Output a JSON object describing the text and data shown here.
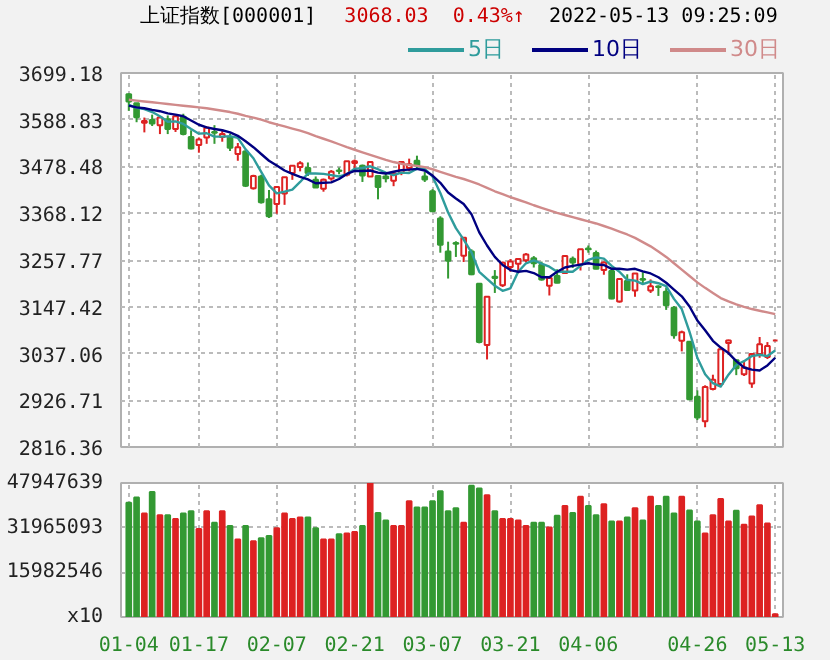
{
  "chart_data": [
    {
      "type": "candlestick",
      "title": "上证指数[000001]",
      "annotations": [
        "3068.03",
        "0.43%↑",
        "2022-05-13 09:25:09"
      ],
      "categories": [
        null,
        null,
        null,
        null,
        null,
        null,
        null,
        null,
        null,
        null,
        null,
        null,
        null,
        null,
        null,
        null,
        null,
        null,
        null,
        null,
        null,
        null,
        null,
        null,
        null,
        null,
        null,
        null,
        null,
        null,
        null,
        null,
        null,
        null,
        null,
        null,
        null,
        null,
        null,
        null,
        null,
        null,
        null,
        null,
        null,
        null,
        null,
        null,
        null,
        null,
        null,
        null,
        null,
        null,
        null,
        null,
        null,
        null,
        null,
        null,
        null,
        null,
        null,
        null,
        null,
        null,
        null,
        null,
        null,
        null,
        null,
        null,
        null,
        null,
        null,
        null,
        null,
        null,
        null,
        null,
        null,
        null,
        null,
        null
      ],
      "ohlc": [
        [
          3649,
          3651,
          3610,
          3632
        ],
        [
          3628,
          3628,
          3583,
          3595
        ],
        [
          3582,
          3594,
          3559,
          3586
        ],
        [
          3588,
          3601,
          3574,
          3580
        ],
        [
          3576,
          3594,
          3555,
          3594
        ],
        [
          3590,
          3599,
          3555,
          3567
        ],
        [
          3567,
          3599,
          3560,
          3597
        ],
        [
          3596,
          3603,
          3552,
          3555
        ],
        [
          3548,
          3564,
          3519,
          3521
        ],
        [
          3529,
          3547,
          3511,
          3542
        ],
        [
          3547,
          3573,
          3532,
          3570
        ],
        [
          3560,
          3576,
          3532,
          3558
        ],
        [
          3548,
          3566,
          3537,
          3555
        ],
        [
          3547,
          3556,
          3515,
          3523
        ],
        [
          3508,
          3534,
          3492,
          3524
        ],
        [
          3514,
          3518,
          3430,
          3433
        ],
        [
          3427,
          3459,
          3424,
          3456
        ],
        [
          3455,
          3459,
          3391,
          3394
        ],
        [
          3401,
          3423,
          3357,
          3361
        ],
        [
          3390,
          3430,
          3367,
          3430
        ],
        [
          3415,
          3453,
          3388,
          3453
        ],
        [
          3463,
          3480,
          3447,
          3480
        ],
        [
          3477,
          3491,
          3467,
          3486
        ],
        [
          3475,
          3488,
          3456,
          3463
        ],
        [
          3447,
          3455,
          3428,
          3429
        ],
        [
          3426,
          3450,
          3419,
          3447
        ],
        [
          3450,
          3470,
          3445,
          3466
        ],
        [
          3469,
          3476,
          3460,
          3468
        ],
        [
          3459,
          3491,
          3455,
          3491
        ],
        [
          3487,
          3495,
          3466,
          3491
        ],
        [
          3480,
          3483,
          3442,
          3457
        ],
        [
          3455,
          3490,
          3454,
          3489
        ],
        [
          3456,
          3458,
          3401,
          3430
        ],
        [
          3455,
          3465,
          3441,
          3451
        ],
        [
          3445,
          3464,
          3432,
          3462
        ],
        [
          3464,
          3489,
          3458,
          3489
        ],
        [
          3475,
          3497,
          3467,
          3484
        ],
        [
          3492,
          3504,
          3471,
          3481
        ],
        [
          3455,
          3466,
          3442,
          3448
        ],
        [
          3420,
          3425,
          3372,
          3373
        ],
        [
          3356,
          3361,
          3275,
          3294
        ],
        [
          3278,
          3301,
          3214,
          3256
        ],
        [
          3298,
          3302,
          3265,
          3296
        ],
        [
          3268,
          3312,
          3253,
          3310
        ],
        [
          3278,
          3283,
          3222,
          3224
        ],
        [
          3202,
          3202,
          3061,
          3064
        ],
        [
          3057,
          3171,
          3023,
          3171
        ],
        [
          3218,
          3234,
          3180,
          3215
        ],
        [
          3198,
          3254,
          3194,
          3251
        ],
        [
          3241,
          3260,
          3230,
          3254
        ],
        [
          3249,
          3260,
          3226,
          3260
        ],
        [
          3257,
          3274,
          3252,
          3271
        ],
        [
          3262,
          3267,
          3240,
          3250
        ],
        [
          3246,
          3254,
          3209,
          3212
        ],
        [
          3197,
          3215,
          3174,
          3215
        ],
        [
          3220,
          3236,
          3203,
          3204
        ],
        [
          3227,
          3267,
          3227,
          3267
        ],
        [
          3261,
          3266,
          3239,
          3252
        ],
        [
          3247,
          3283,
          3233,
          3283
        ],
        [
          3285,
          3292,
          3275,
          3283
        ],
        [
          3274,
          3280,
          3236,
          3237
        ],
        [
          3234,
          3254,
          3223,
          3252
        ],
        [
          3232,
          3240,
          3165,
          3167
        ],
        [
          3160,
          3214,
          3157,
          3213
        ],
        [
          3208,
          3224,
          3185,
          3187
        ],
        [
          3186,
          3226,
          3171,
          3226
        ],
        [
          3213,
          3229,
          3202,
          3211
        ],
        [
          3186,
          3212,
          3180,
          3196
        ],
        [
          3195,
          3198,
          3173,
          3194
        ],
        [
          3183,
          3193,
          3140,
          3151
        ],
        [
          3145,
          3149,
          3072,
          3080
        ],
        [
          3067,
          3091,
          3042,
          3087
        ],
        [
          3065,
          3066,
          2927,
          2929
        ],
        [
          2935,
          2950,
          2880,
          2886
        ],
        [
          2877,
          2962,
          2863,
          2958
        ],
        [
          2953,
          2987,
          2950,
          2975
        ],
        [
          2965,
          3048,
          2962,
          3047
        ],
        [
          3062,
          3070,
          3034,
          3068
        ],
        [
          3021,
          3023,
          2986,
          3002
        ],
        [
          2988,
          3017,
          2984,
          3004
        ],
        [
          2966,
          3036,
          2956,
          3036
        ],
        [
          3036,
          3076,
          3027,
          3059
        ],
        [
          3029,
          3064,
          3024,
          3055
        ],
        [
          3068,
          3068,
          3068,
          3068
        ]
      ],
      "series": [
        {
          "name": "5日",
          "type": "line",
          "color": "#2f9c9c",
          "values": [
            3624,
            3617,
            3614,
            3607,
            3597,
            3584,
            3585,
            3579,
            3567,
            3556,
            3557,
            3549,
            3549,
            3550,
            3546,
            3519,
            3498,
            3466,
            3434,
            3415,
            3419,
            3424,
            3442,
            3462,
            3462,
            3461,
            3458,
            3455,
            3460,
            3473,
            3475,
            3479,
            3472,
            3464,
            3458,
            3464,
            3463,
            3473,
            3473,
            3455,
            3416,
            3370,
            3333,
            3306,
            3276,
            3230,
            3213,
            3197,
            3185,
            3191,
            3230,
            3250,
            3257,
            3249,
            3242,
            3230,
            3230,
            3230,
            3244,
            3258,
            3264,
            3261,
            3244,
            3230,
            3211,
            3209,
            3201,
            3207,
            3203,
            3196,
            3166,
            3142,
            3088,
            3027,
            2988,
            2967,
            2959,
            2987,
            3010,
            3019,
            3031,
            3034,
            3031,
            3044
          ]
        },
        {
          "name": "10日",
          "type": "line",
          "color": "#000080",
          "values": [
            3622,
            3618,
            3616,
            3612,
            3609,
            3604,
            3601,
            3597,
            3587,
            3577,
            3571,
            3567,
            3564,
            3559,
            3551,
            3538,
            3524,
            3508,
            3492,
            3481,
            3469,
            3461,
            3454,
            3448,
            3439,
            3440,
            3441,
            3449,
            3461,
            3468,
            3468,
            3469,
            3464,
            3462,
            3466,
            3470,
            3471,
            3473,
            3469,
            3457,
            3440,
            3417,
            3403,
            3390,
            3366,
            3323,
            3292,
            3265,
            3246,
            3234,
            3230,
            3232,
            3227,
            3217,
            3217,
            3230,
            3240,
            3244,
            3247,
            3250,
            3247,
            3246,
            3237,
            3237,
            3235,
            3237,
            3231,
            3226,
            3217,
            3204,
            3188,
            3172,
            3148,
            3115,
            3092,
            3067,
            3051,
            3038,
            3019,
            3004,
            2999,
            2997,
            3009,
            3027
          ]
        },
        {
          "name": "30日",
          "type": "line",
          "color": "#d08a8a",
          "values": [
            3636,
            3634,
            3632,
            3630,
            3628,
            3626,
            3624,
            3622,
            3620,
            3618,
            3616,
            3613,
            3610,
            3607,
            3603,
            3598,
            3594,
            3589,
            3583,
            3578,
            3573,
            3568,
            3563,
            3557,
            3550,
            3544,
            3538,
            3531,
            3524,
            3518,
            3512,
            3506,
            3500,
            3494,
            3489,
            3485,
            3482,
            3480,
            3477,
            3472,
            3466,
            3460,
            3454,
            3449,
            3443,
            3436,
            3428,
            3420,
            3413,
            3406,
            3400,
            3394,
            3387,
            3381,
            3375,
            3369,
            3364,
            3359,
            3354,
            3349,
            3344,
            3338,
            3332,
            3325,
            3318,
            3310,
            3300,
            3290,
            3278,
            3265,
            3250,
            3235,
            3220,
            3205,
            3192,
            3180,
            3168,
            3160,
            3153,
            3147,
            3142,
            3138,
            3134,
            3130
          ]
        }
      ],
      "ylim": [
        2816.36,
        3699.18
      ],
      "yticks": [
        2816.36,
        2926.71,
        3037.06,
        3147.42,
        3257.77,
        3368.12,
        3478.48,
        3588.83,
        3699.18
      ],
      "grid": true,
      "legend": "top right"
    },
    {
      "type": "bar",
      "categories": [
        "01-04",
        null,
        null,
        null,
        null,
        null,
        null,
        null,
        null,
        "01-17",
        null,
        null,
        null,
        null,
        null,
        null,
        null,
        null,
        null,
        "02-07",
        null,
        null,
        null,
        null,
        null,
        null,
        null,
        null,
        null,
        "02-21",
        null,
        null,
        null,
        null,
        null,
        null,
        null,
        null,
        null,
        "03-07",
        null,
        null,
        null,
        null,
        null,
        null,
        null,
        null,
        null,
        "03-21",
        null,
        null,
        null,
        null,
        null,
        null,
        null,
        null,
        null,
        "04-06",
        null,
        null,
        null,
        null,
        null,
        null,
        null,
        null,
        null,
        null,
        null,
        null,
        null,
        "04-26",
        null,
        null,
        null,
        null,
        null,
        null,
        null,
        null,
        null,
        "05-13"
      ],
      "values": [
        40900000,
        42800000,
        37000000,
        44700000,
        36400000,
        36400000,
        35100000,
        37000000,
        37800000,
        31500000,
        37800000,
        33700000,
        37800000,
        32600000,
        27700000,
        32600000,
        27100000,
        28200000,
        29000000,
        31800000,
        37000000,
        35100000,
        35600000,
        35600000,
        31800000,
        27700000,
        27700000,
        29600000,
        29900000,
        30400000,
        32600000,
        47900000,
        37200000,
        34500000,
        32600000,
        32600000,
        41400000,
        39200000,
        39200000,
        41400000,
        45000000,
        37800000,
        38900000,
        33700000,
        47000000,
        46000000,
        43600000,
        37800000,
        35100000,
        35100000,
        34500000,
        32600000,
        33700000,
        33700000,
        32000000,
        36200000,
        39700000,
        37200000,
        43000000,
        39700000,
        36400000,
        40300000,
        34200000,
        34200000,
        35600000,
        38900000,
        34500000,
        43000000,
        39700000,
        43000000,
        37000000,
        43000000,
        38100000,
        34200000,
        29900000,
        36400000,
        42200000,
        34200000,
        38000000,
        33000000,
        36000000,
        40000000,
        33500000,
        1000000
      ],
      "colors": [
        "#339933",
        "#339933",
        "#dd2222",
        "#339933",
        "#dd2222",
        "#339933",
        "#dd2222",
        "#339933",
        "#339933",
        "#dd2222",
        "#dd2222",
        "#339933",
        "#dd2222",
        "#339933",
        "#dd2222",
        "#339933",
        "#dd2222",
        "#339933",
        "#339933",
        "#dd2222",
        "#dd2222",
        "#dd2222",
        "#dd2222",
        "#339933",
        "#339933",
        "#dd2222",
        "#dd2222",
        "#339933",
        "#dd2222",
        "#dd2222",
        "#339933",
        "#dd2222",
        "#339933",
        "#339933",
        "#dd2222",
        "#dd2222",
        "#dd2222",
        "#339933",
        "#339933",
        "#339933",
        "#339933",
        "#339933",
        "#339933",
        "#dd2222",
        "#339933",
        "#339933",
        "#dd2222",
        "#339933",
        "#dd2222",
        "#dd2222",
        "#dd2222",
        "#dd2222",
        "#339933",
        "#339933",
        "#dd2222",
        "#339933",
        "#dd2222",
        "#339933",
        "#dd2222",
        "#339933",
        "#339933",
        "#dd2222",
        "#339933",
        "#dd2222",
        "#339933",
        "#dd2222",
        "#339933",
        "#dd2222",
        "#339933",
        "#339933",
        "#339933",
        "#dd2222",
        "#339933",
        "#339933",
        "#dd2222",
        "#dd2222",
        "#dd2222",
        "#dd2222",
        "#339933",
        "#dd2222",
        "#dd2222",
        "#dd2222",
        "#dd2222",
        "#dd2222"
      ],
      "ylim": [
        0,
        47947639
      ],
      "yticks": [
        {
          "value": 0,
          "label": "x10"
        },
        15982546,
        31965093,
        47947639
      ],
      "grid": true
    }
  ]
}
